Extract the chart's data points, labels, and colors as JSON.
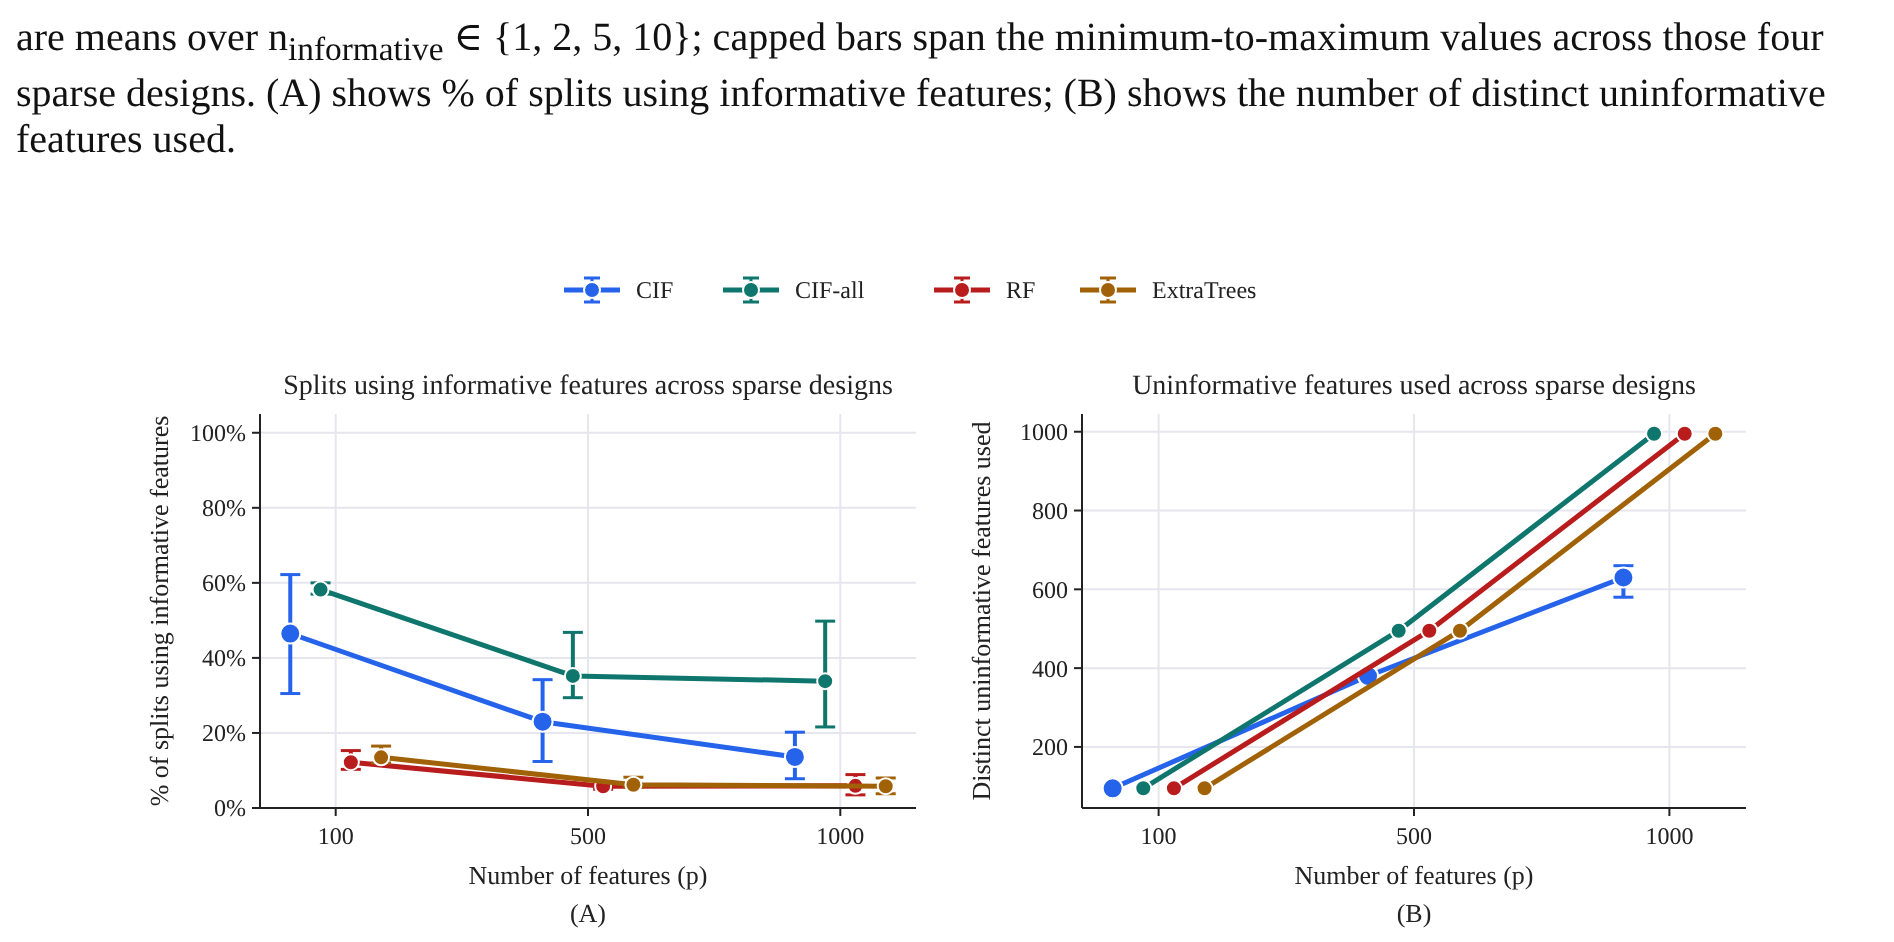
{
  "chart_data": [
    {
      "type": "line",
      "title": "Splits using informative features across sparse designs",
      "xlabel": "Number of features (p)",
      "ylabel": "% of splits using informative features",
      "annotations": [
        "are means over n$_{informative}$ ∈ {1, 2, 5, 10}; capped bars span the minimum-to-maximum values across those four sparse designs. (A) shows % of splits using informative features; (B) shows the number of distinct uninformative features used.",
        "(A)"
      ],
      "categories": [
        "100",
        "500",
        "1000"
      ],
      "series": [
        {
          "name": "CIF",
          "color": "#2563eb",
          "values": [
            46.5,
            23,
            13.6
          ],
          "errors": [
            [
              30.5,
              62.2
            ],
            [
              12.4,
              34.2
            ],
            [
              7.8,
              20.2
            ]
          ]
        },
        {
          "name": "CIF-all",
          "color": "#0f766e",
          "values": [
            58.2,
            35.2,
            33.8
          ],
          "errors": [
            [
              57,
              60
            ],
            [
              29.4,
              46.8
            ],
            [
              21.6,
              49.8
            ]
          ]
        },
        {
          "name": "RF",
          "color": "#b91c1c",
          "values": [
            12.2,
            5.8,
            5.9
          ],
          "errors": [
            [
              10.3,
              15.3
            ],
            [
              5,
              6.5
            ],
            [
              3.5,
              8.9
            ]
          ]
        },
        {
          "name": "ExtraTrees",
          "color": "#a16207",
          "values": [
            13.5,
            6.2,
            5.8
          ],
          "errors": [
            [
              12,
              16.5
            ],
            [
              5.5,
              8.2
            ],
            [
              3.8,
              8
            ]
          ]
        }
      ],
      "ylim": [
        0,
        105
      ],
      "yticks": [
        {
          "value": 0,
          "label": "0%"
        },
        {
          "value": 20,
          "label": "20%"
        },
        {
          "value": 40,
          "label": "40%"
        },
        {
          "value": 60,
          "label": "60%"
        },
        {
          "value": 80,
          "label": "80%"
        },
        {
          "value": 100,
          "label": "100%"
        }
      ],
      "grid": true,
      "legend": "top",
      "marker": "circle",
      "line_style": "solid"
    },
    {
      "type": "line",
      "title": "Uninformative features used across sparse designs",
      "xlabel": "Number of features (p)",
      "ylabel": "Distinct uninformative features used",
      "annotations": [
        "(B)"
      ],
      "categories": [
        "100",
        "500",
        "1000"
      ],
      "series": [
        {
          "color": "#2563eb",
          "values": [
            95,
            380,
            630
          ],
          "errors": [
            null,
            null,
            [
              580,
              660
            ]
          ]
        },
        {
          "color": "#0f766e",
          "values": [
            95,
            495,
            995
          ]
        },
        {
          "color": "#b91c1c",
          "values": [
            95,
            495,
            995
          ]
        },
        {
          "color": "#a16207",
          "values": [
            95,
            495,
            995
          ]
        }
      ],
      "ylim": [
        45,
        1045
      ],
      "yticks": [
        200,
        400,
        600,
        800,
        1000
      ],
      "grid": true,
      "marker": "circle",
      "line_style": "solid"
    }
  ]
}
